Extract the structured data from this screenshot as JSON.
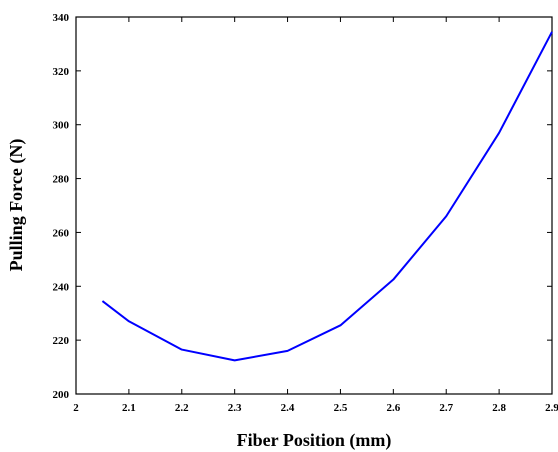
{
  "chart_data": {
    "type": "line",
    "xlabel": "Fiber Position (mm)",
    "ylabel": "Pulling Force (N)",
    "xlim": [
      2.0,
      2.9
    ],
    "ylim": [
      200,
      340
    ],
    "x_ticks": [
      "2",
      "2.1",
      "2.2",
      "2.3",
      "2.4",
      "2.5",
      "2.6",
      "2.7",
      "2.8",
      "2.9"
    ],
    "y_ticks": [
      "200",
      "220",
      "240",
      "260",
      "280",
      "300",
      "320",
      "340"
    ],
    "grid": false,
    "series": [
      {
        "color": "#0000ff",
        "x": [
          2.05,
          2.1,
          2.2,
          2.3,
          2.4,
          2.5,
          2.6,
          2.7,
          2.8,
          2.9
        ],
        "y": [
          234.5,
          227,
          216.5,
          212.5,
          216,
          225.5,
          242.5,
          266,
          297,
          334.5
        ]
      }
    ]
  }
}
